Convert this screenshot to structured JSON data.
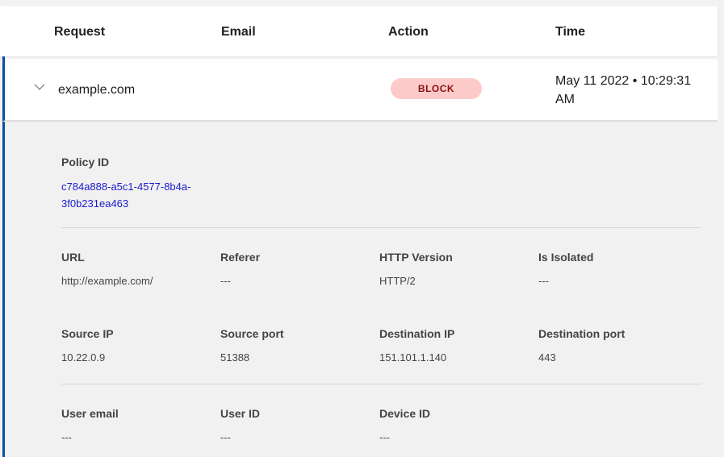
{
  "columns": [
    "Request",
    "Email",
    "Action",
    "Time"
  ],
  "row": {
    "request": "example.com",
    "email": "",
    "action": "BLOCK",
    "time": "May 11 2022 • 10:29:31 AM"
  },
  "colors": {
    "accent": "#0b4fa5",
    "block_bg": "#fdcaca",
    "block_text": "#8a1111",
    "link": "#1a1acc"
  },
  "detail": {
    "policy_label": "Policy ID",
    "policy_id": "c784a888-a5c1-4577-8b4a-3f0b231ea463",
    "fields": [
      {
        "label": "URL",
        "value": "http://example.com/"
      },
      {
        "label": "Referer",
        "value": "---"
      },
      {
        "label": "HTTP Version",
        "value": "HTTP/2"
      },
      {
        "label": "Is Isolated",
        "value": "---"
      },
      {
        "label": "Source IP",
        "value": "10.22.0.9"
      },
      {
        "label": "Source port",
        "value": "51388"
      },
      {
        "label": "Destination IP",
        "value": "151.101.1.140"
      },
      {
        "label": "Destination port",
        "value": "443"
      },
      {
        "label": "User email",
        "value": "---"
      },
      {
        "label": "User ID",
        "value": "---"
      },
      {
        "label": "Device ID",
        "value": "---"
      }
    ]
  }
}
